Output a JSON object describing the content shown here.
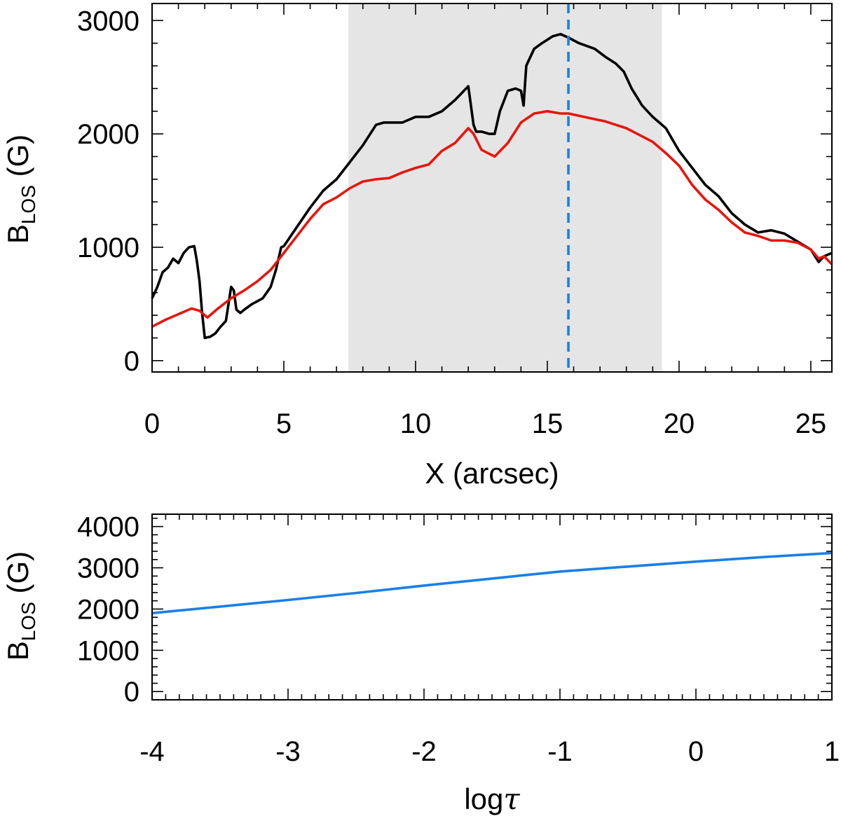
{
  "chart_data": [
    {
      "type": "line",
      "xlabel": "X (arcsec)",
      "ylabel": {
        "main": "B",
        "sub": "LOS",
        "unit": " (G)"
      },
      "xlim": [
        0,
        25.8
      ],
      "ylim": [
        -100,
        3150
      ],
      "x_ticks": [
        "0",
        "5",
        "10",
        "15",
        "20",
        "25"
      ],
      "y_ticks": [
        "0",
        "1000",
        "2000",
        "3000"
      ],
      "grid": false,
      "legend": "none",
      "shaded_region": {
        "x_start": 7.45,
        "x_end": 19.35,
        "color": "#e5e5e5"
      },
      "vertical_line": {
        "x": 15.8,
        "color": "#1a7fe6",
        "style": "dashed"
      },
      "series": [
        {
          "color": "#000000",
          "x": [
            0,
            0.2,
            0.4,
            0.6,
            0.8,
            1.0,
            1.2,
            1.4,
            1.6,
            1.7,
            1.8,
            1.9,
            2.0,
            2.2,
            2.4,
            2.6,
            2.8,
            3.0,
            3.1,
            3.2,
            3.35,
            3.5,
            3.8,
            4.2,
            4.5,
            4.7,
            4.9,
            5.0,
            5.5,
            6.0,
            6.5,
            7.0,
            7.5,
            8.0,
            8.5,
            8.8,
            9.0,
            9.5,
            10.0,
            10.5,
            11.0,
            11.5,
            12.0,
            12.2,
            12.3,
            12.5,
            12.8,
            13.0,
            13.2,
            13.5,
            13.8,
            14.0,
            14.1,
            14.2,
            14.3,
            14.5,
            14.8,
            15.2,
            15.5,
            15.8,
            16.2,
            16.8,
            17.2,
            17.6,
            17.9,
            18.2,
            18.6,
            19.0,
            19.5,
            20.0,
            20.5,
            21.0,
            21.5,
            22.0,
            22.5,
            23.0,
            23.5,
            24.0,
            24.5,
            25.0,
            25.3,
            25.5,
            25.8
          ],
          "values": [
            550,
            650,
            780,
            820,
            900,
            860,
            950,
            1000,
            1010,
            880,
            700,
            420,
            200,
            210,
            240,
            300,
            350,
            650,
            620,
            450,
            420,
            450,
            500,
            550,
            650,
            800,
            1000,
            1010,
            1180,
            1350,
            1500,
            1600,
            1750,
            1900,
            2080,
            2100,
            2100,
            2100,
            2150,
            2150,
            2200,
            2300,
            2420,
            2080,
            2020,
            2020,
            2000,
            2000,
            2200,
            2380,
            2400,
            2380,
            2250,
            2600,
            2650,
            2750,
            2800,
            2860,
            2880,
            2850,
            2800,
            2750,
            2680,
            2620,
            2550,
            2400,
            2250,
            2150,
            2050,
            1850,
            1700,
            1550,
            1450,
            1300,
            1200,
            1130,
            1150,
            1120,
            1050,
            980,
            870,
            920,
            950
          ]
        },
        {
          "color": "#e8150c",
          "x": [
            0,
            0.5,
            1.0,
            1.5,
            1.8,
            2.1,
            2.5,
            3.0,
            3.5,
            4.0,
            4.5,
            5.0,
            5.5,
            6.0,
            6.5,
            7.0,
            7.5,
            8.0,
            8.5,
            9.0,
            9.5,
            10.0,
            10.5,
            11.0,
            11.5,
            12.0,
            12.2,
            12.5,
            13.0,
            13.5,
            14.0,
            14.5,
            15.0,
            15.5,
            15.8,
            16.2,
            16.8,
            17.2,
            17.6,
            18.0,
            18.5,
            19.0,
            19.5,
            20.0,
            20.5,
            21.0,
            21.5,
            22.0,
            22.5,
            23.0,
            23.5,
            24.0,
            24.5,
            25.0,
            25.3,
            25.5,
            25.8
          ],
          "values": [
            300,
            360,
            410,
            460,
            440,
            380,
            460,
            550,
            620,
            700,
            800,
            950,
            1100,
            1250,
            1380,
            1440,
            1520,
            1580,
            1600,
            1610,
            1660,
            1700,
            1730,
            1850,
            1920,
            2050,
            2000,
            1860,
            1800,
            1920,
            2100,
            2180,
            2200,
            2180,
            2180,
            2160,
            2130,
            2110,
            2080,
            2050,
            1990,
            1930,
            1830,
            1720,
            1550,
            1420,
            1330,
            1220,
            1130,
            1100,
            1060,
            1060,
            1040,
            980,
            900,
            920,
            850
          ]
        }
      ]
    },
    {
      "type": "line",
      "xlabel": "log",
      "xlabel_symbol": "τ",
      "ylabel": {
        "main": "B",
        "sub": "LOS",
        "unit": " (G)"
      },
      "xlim": [
        -4,
        1
      ],
      "ylim": [
        -200,
        4300
      ],
      "x_ticks": [
        "-4",
        "-3",
        "-2",
        "-1",
        "0",
        "1"
      ],
      "y_ticks": [
        "0",
        "1000",
        "2000",
        "3000",
        "4000"
      ],
      "grid": false,
      "legend": "none",
      "series": [
        {
          "color": "#1a7fe6",
          "x": [
            -4,
            -3.5,
            -3,
            -2.5,
            -2,
            -1.5,
            -1,
            -0.5,
            0,
            0.5,
            1
          ],
          "values": [
            1900,
            2060,
            2220,
            2390,
            2570,
            2740,
            2910,
            3030,
            3150,
            3260,
            3360
          ]
        }
      ]
    }
  ]
}
